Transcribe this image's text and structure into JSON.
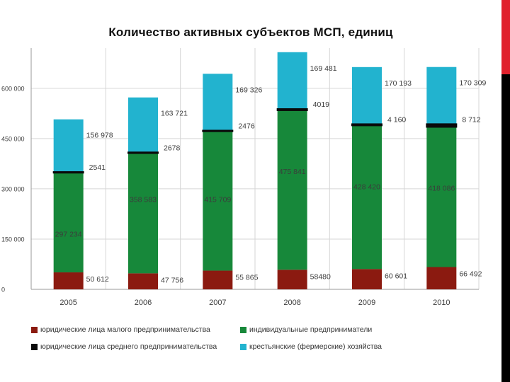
{
  "colors": {
    "small_legal": "#8b1a10",
    "individual": "#17883a",
    "medium_legal": "#0a0a0a",
    "farm": "#22b3cf",
    "accent_top": "#e0212d",
    "accent_bottom": "#000000"
  },
  "chart_data": {
    "type": "bar",
    "stacked": true,
    "title": "Количество активных субъектов МСП, единиц",
    "xlabel": "",
    "ylabel": "",
    "ylim": [
      0,
      720000
    ],
    "y_ticks": [
      0,
      150000,
      300000,
      450000,
      600000
    ],
    "y_tick_labels": [
      "0",
      "150 000",
      "300 000",
      "450 000",
      "600 000"
    ],
    "categories": [
      "2005",
      "2006",
      "2007",
      "2008",
      "2009",
      "2010"
    ],
    "gridlines": true,
    "legend_position": "bottom",
    "series": [
      {
        "key": "small_legal",
        "name": "юридические лица малого предпринимательства",
        "values": [
          50612,
          47756,
          55865,
          58480,
          60601,
          66492
        ],
        "labels": [
          "50 612",
          "47 756",
          "55 865",
          "58480",
          "60 601",
          "66 492"
        ]
      },
      {
        "key": "individual",
        "name": "индивидуальные предприниматели",
        "values": [
          297234,
          358583,
          415709,
          475841,
          428420,
          418086
        ],
        "labels": [
          "297 234",
          "358 583",
          "415 709",
          "475 841",
          "428 420",
          "418 086"
        ]
      },
      {
        "key": "medium_legal",
        "name": "юридические лица среднего предпринимательства",
        "values": [
          2541,
          2678,
          2476,
          4019,
          4160,
          8712
        ],
        "labels": [
          "2541",
          "2678",
          "2476",
          "4019",
          "4 160",
          "8 712"
        ]
      },
      {
        "key": "farm",
        "name": "крестьянские (фермерские) хозяйства",
        "values": [
          156978,
          163721,
          169326,
          169481,
          170193,
          170309
        ],
        "labels": [
          "156 978",
          "163 721",
          "169 326",
          "169 481",
          "170 193",
          "170 309"
        ]
      }
    ]
  }
}
